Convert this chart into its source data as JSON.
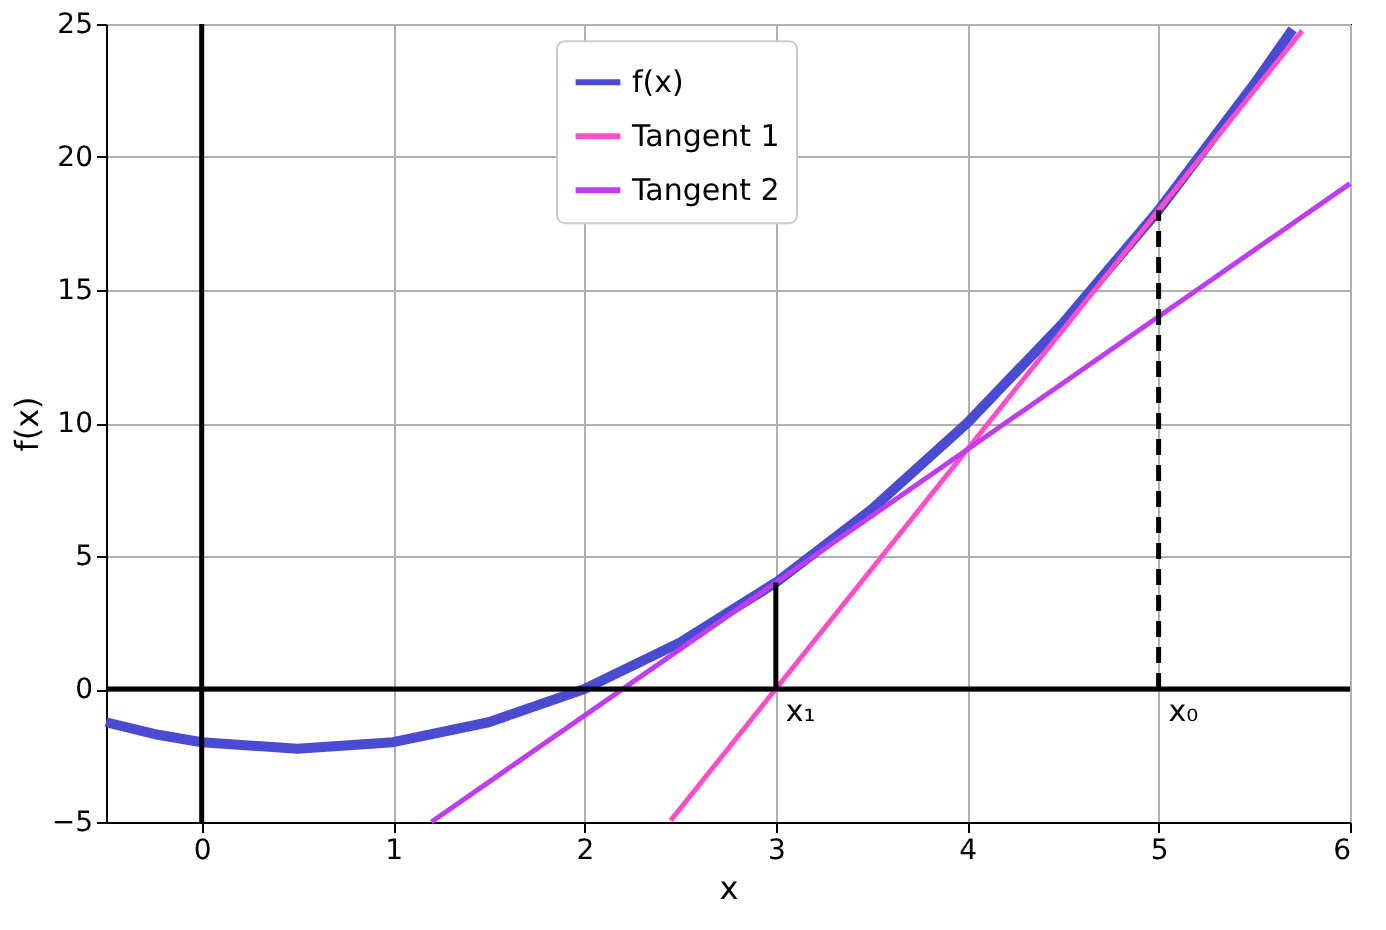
{
  "chart_data": {
    "type": "line",
    "xlabel": "x",
    "ylabel": "f(x)",
    "series": [
      {
        "name": "f(x)",
        "color": "#4b4bd2",
        "x": [
          -0.5,
          -0.25,
          0,
          0.5,
          1,
          1.5,
          2,
          2.5,
          3,
          3.5,
          4,
          4.5,
          5,
          5.5,
          5.7
        ],
        "values": [
          -1.25,
          -1.69,
          -2,
          -2.25,
          -2,
          -1.25,
          0,
          1.75,
          4,
          6.75,
          10,
          13.75,
          18,
          22.75,
          24.8
        ]
      },
      {
        "name": "Tangent 1",
        "color": "#ff4fc8",
        "x": [
          2.45,
          5.75
        ],
        "values": [
          -4.95,
          24.75
        ]
      },
      {
        "name": "Tangent 2",
        "color": "#c03cf0",
        "x": [
          1.2,
          6
        ],
        "values": [
          -5,
          19
        ]
      },
      {
        "color": "#000000",
        "line_style": "solid",
        "x": [
          3,
          3
        ],
        "values": [
          0,
          4
        ]
      },
      {
        "color": "#000000",
        "line_style": "dashed",
        "x": [
          5,
          5
        ],
        "values": [
          0,
          18
        ]
      },
      {
        "color": "#000000",
        "line_style": "solid",
        "x": [
          0,
          0
        ],
        "values": [
          -5,
          25
        ]
      },
      {
        "color": "#000000",
        "line_style": "solid",
        "x": [
          -0.5,
          6
        ],
        "values": [
          0,
          0
        ]
      }
    ],
    "annotations": [
      {
        "text": "x₁",
        "x": 3,
        "y": 0
      },
      {
        "text": "x₀",
        "x": 5,
        "y": 0
      }
    ],
    "xlim": [
      -0.5,
      6
    ],
    "xticks": [
      0,
      1,
      2,
      3,
      4,
      5,
      6
    ],
    "ylim": [
      -5,
      25
    ],
    "yticks": [
      -5,
      0,
      5,
      10,
      15,
      20,
      25
    ],
    "grid": true,
    "legend": "top",
    "marker": "none"
  }
}
